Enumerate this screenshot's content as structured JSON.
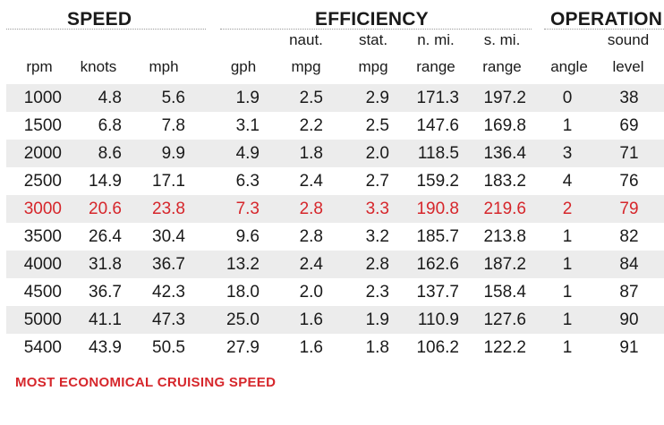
{
  "groups": {
    "speed": "SPEED",
    "efficiency": "EFFICIENCY",
    "operation": "OPERATION"
  },
  "headers": {
    "top": {
      "naut_mpg": "naut.",
      "stat_mpg": "stat.",
      "nmi_range": "n. mi.",
      "smi_range": "s. mi.",
      "sound_level": "sound"
    },
    "bottom": {
      "rpm": "rpm",
      "knots": "knots",
      "mph": "mph",
      "gph": "gph",
      "naut_mpg": "mpg",
      "stat_mpg": "mpg",
      "nmi_range": "range",
      "smi_range": "range",
      "angle": "angle",
      "sound_level": "level"
    }
  },
  "rows": [
    {
      "rpm": "1000",
      "knots": "4.8",
      "mph": "5.6",
      "gph": "1.9",
      "naut_mpg": "2.5",
      "stat_mpg": "2.9",
      "nmi_range": "171.3",
      "smi_range": "197.2",
      "angle": "0",
      "sound": "38"
    },
    {
      "rpm": "1500",
      "knots": "6.8",
      "mph": "7.8",
      "gph": "3.1",
      "naut_mpg": "2.2",
      "stat_mpg": "2.5",
      "nmi_range": "147.6",
      "smi_range": "169.8",
      "angle": "1",
      "sound": "69"
    },
    {
      "rpm": "2000",
      "knots": "8.6",
      "mph": "9.9",
      "gph": "4.9",
      "naut_mpg": "1.8",
      "stat_mpg": "2.0",
      "nmi_range": "118.5",
      "smi_range": "136.4",
      "angle": "3",
      "sound": "71"
    },
    {
      "rpm": "2500",
      "knots": "14.9",
      "mph": "17.1",
      "gph": "6.3",
      "naut_mpg": "2.4",
      "stat_mpg": "2.7",
      "nmi_range": "159.2",
      "smi_range": "183.2",
      "angle": "4",
      "sound": "76"
    },
    {
      "rpm": "3000",
      "knots": "20.6",
      "mph": "23.8",
      "gph": "7.3",
      "naut_mpg": "2.8",
      "stat_mpg": "3.3",
      "nmi_range": "190.8",
      "smi_range": "219.6",
      "angle": "2",
      "sound": "79"
    },
    {
      "rpm": "3500",
      "knots": "26.4",
      "mph": "30.4",
      "gph": "9.6",
      "naut_mpg": "2.8",
      "stat_mpg": "3.2",
      "nmi_range": "185.7",
      "smi_range": "213.8",
      "angle": "1",
      "sound": "82"
    },
    {
      "rpm": "4000",
      "knots": "31.8",
      "mph": "36.7",
      "gph": "13.2",
      "naut_mpg": "2.4",
      "stat_mpg": "2.8",
      "nmi_range": "162.6",
      "smi_range": "187.2",
      "angle": "1",
      "sound": "84"
    },
    {
      "rpm": "4500",
      "knots": "36.7",
      "mph": "42.3",
      "gph": "18.0",
      "naut_mpg": "2.0",
      "stat_mpg": "2.3",
      "nmi_range": "137.7",
      "smi_range": "158.4",
      "angle": "1",
      "sound": "87"
    },
    {
      "rpm": "5000",
      "knots": "41.1",
      "mph": "47.3",
      "gph": "25.0",
      "naut_mpg": "1.6",
      "stat_mpg": "1.9",
      "nmi_range": "110.9",
      "smi_range": "127.6",
      "angle": "1",
      "sound": "90"
    },
    {
      "rpm": "5400",
      "knots": "43.9",
      "mph": "50.5",
      "gph": "27.9",
      "naut_mpg": "1.6",
      "stat_mpg": "1.8",
      "nmi_range": "106.2",
      "smi_range": "122.2",
      "angle": "1",
      "sound": "91"
    }
  ],
  "highlight_row_index": 4,
  "footnote": "MOST ECONOMICAL CRUISING SPEED",
  "colors": {
    "highlight": "#d6262b",
    "row_shade": "#ececec",
    "text": "#1a1a1a"
  }
}
